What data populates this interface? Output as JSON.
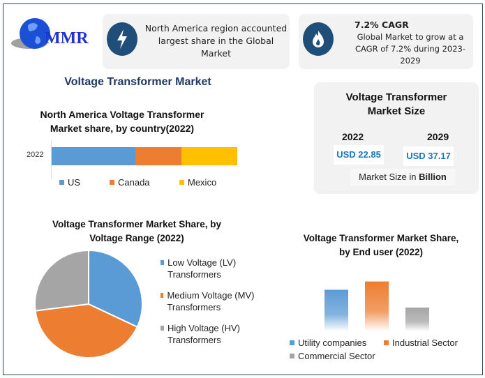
{
  "logo": {
    "text": "MMR"
  },
  "info1": {
    "icon": "lightning-icon",
    "text": "North America region accounted largest share in the Global Market"
  },
  "info2": {
    "icon": "flame-icon",
    "heading": "7.2% CAGR",
    "text": "Global Market to grow at a CAGR of 7.2% during 2023-2029"
  },
  "main_title": "Voltage Transformer Market",
  "market_size": {
    "title": "Voltage Transformer Market Size",
    "year1": "2022",
    "year2": "2029",
    "value1": "USD 22.85",
    "value2": "USD 37.17",
    "note_prefix": "Market Size in ",
    "note_unit": "Billion"
  },
  "colors": {
    "blue": "#5b9bd5",
    "orange": "#ed7d31",
    "yellow": "#ffc000",
    "gray": "#a5a5a5",
    "navy": "#1f3864"
  },
  "chart_data": [
    {
      "type": "bar",
      "orientation": "horizontal-stacked",
      "title": "North America Voltage Transformer Market share, by country(2022)",
      "categories": [
        "2022"
      ],
      "series": [
        {
          "name": "US",
          "values": [
            45
          ]
        },
        {
          "name": "Canada",
          "values": [
            25
          ]
        },
        {
          "name": "Mexico",
          "values": [
            30
          ]
        }
      ],
      "legend": "bottom"
    },
    {
      "type": "pie",
      "title": "Voltage Transformer Market Share, by Voltage Range (2022)",
      "labels": [
        "Low Voltage (LV) Transformers",
        "Medium Voltage (MV) Transformers",
        "High Voltage (HV) Transformers"
      ],
      "values": [
        32,
        41,
        27
      ],
      "legend": "right"
    },
    {
      "type": "bar",
      "title": "Voltage Transformer Market Share, by End user (2022)",
      "categories": [
        "Utility companies",
        "Industrial Sector",
        "Commercial Sector"
      ],
      "values": [
        35,
        42,
        20
      ],
      "legend": "bottom"
    }
  ]
}
